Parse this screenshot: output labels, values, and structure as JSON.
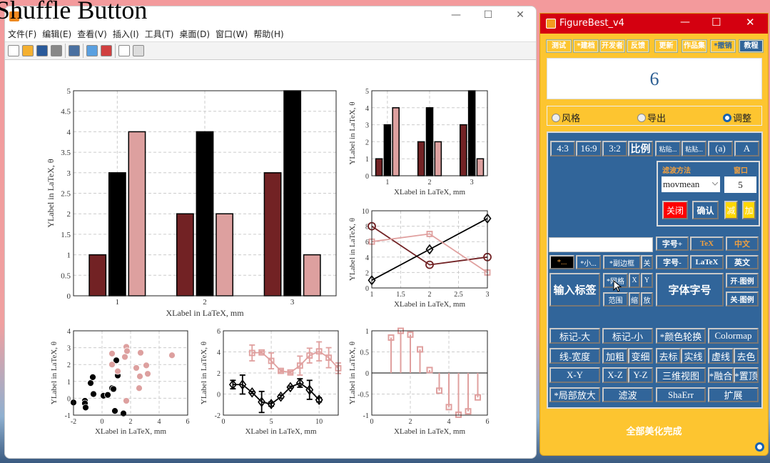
{
  "figure_window": {
    "overlay_label": "Shuffle Button",
    "menu": [
      "文件(F)",
      "编辑(E)",
      "查看(V)",
      "插入(I)",
      "工具(T)",
      "桌面(D)",
      "窗口(W)",
      "帮助(H)"
    ],
    "toolbar_icons": [
      "new-file-icon",
      "open-folder-icon",
      "save-icon",
      "print-icon",
      "link-icon",
      "colorbar-icon",
      "legend-icon",
      "pointer-icon",
      "property-editor-icon"
    ],
    "controls": {
      "minimize": "—",
      "maximize": "☐",
      "close": "✕"
    }
  },
  "chart_data": [
    {
      "id": "main-bar",
      "type": "bar",
      "categories": [
        1,
        2,
        3
      ],
      "xlim": [
        0.5,
        3.5
      ],
      "ylim": [
        0,
        5
      ],
      "yticks": [
        0,
        0.5,
        1,
        1.5,
        2,
        2.5,
        3,
        3.5,
        4,
        4.5,
        5
      ],
      "xticks": [
        1,
        2,
        3
      ],
      "series": [
        {
          "color": "#722224",
          "values": [
            1,
            2,
            3
          ]
        },
        {
          "color": "#000000",
          "values": [
            3,
            4,
            5
          ]
        },
        {
          "color": "#dda09f",
          "values": [
            4,
            2,
            1
          ]
        }
      ],
      "xlabel": "XLabel in LaTeX, mm",
      "ylabel": "YLabel in LaTeX, θ",
      "grid": true
    },
    {
      "id": "small-bar",
      "type": "bar",
      "categories": [
        1,
        2,
        3
      ],
      "xlim": [
        0.63,
        3.37
      ],
      "ylim": [
        0,
        5
      ],
      "yticks": [
        0,
        1,
        2,
        3,
        4,
        5
      ],
      "xticks": [
        1,
        2,
        3
      ],
      "series": [
        {
          "color": "#722224",
          "values": [
            1,
            2,
            3
          ]
        },
        {
          "color": "#000000",
          "values": [
            3,
            4,
            5
          ]
        },
        {
          "color": "#dda09f",
          "values": [
            4,
            2,
            1
          ]
        }
      ],
      "xlabel": "XLabel in LaTeX, mm",
      "ylabel": "YLabel in LaTeX, θ",
      "grid": true
    },
    {
      "id": "line",
      "type": "line",
      "xlim": [
        1,
        3
      ],
      "ylim": [
        0,
        10
      ],
      "xticks": [
        1,
        1.5,
        2,
        2.5,
        3
      ],
      "yticks": [
        0,
        2,
        4,
        6,
        8,
        10
      ],
      "series": [
        {
          "color": "#722224",
          "marker": "circle",
          "x": [
            1,
            2,
            3
          ],
          "y": [
            8,
            3,
            4
          ]
        },
        {
          "color": "#000000",
          "marker": "diamond",
          "x": [
            1,
            2,
            3
          ],
          "y": [
            1,
            5,
            9
          ]
        },
        {
          "color": "#e0a09f",
          "marker": "square",
          "x": [
            1,
            2,
            3
          ],
          "y": [
            6,
            7,
            2
          ]
        }
      ],
      "xlabel": "XLabel in LaTeX, mm",
      "ylabel": "YLabel in LaTeX, θ",
      "grid": true
    },
    {
      "id": "scatter",
      "type": "scatter",
      "xlim": [
        -2,
        6
      ],
      "ylim": [
        -1,
        4
      ],
      "xticks": [
        -2,
        0,
        2,
        4,
        6
      ],
      "yticks": [
        -1,
        0,
        1,
        2,
        3,
        4
      ],
      "series": [
        {
          "color": "#000000",
          "x": [
            -2,
            -1.2,
            -1.2,
            -1.15,
            -0.8,
            -0.65,
            -0.6,
            0.1,
            0.4,
            0.7,
            0.8,
            1.0,
            1.1,
            0.9,
            1.5
          ],
          "y": [
            -0.25,
            -0.15,
            -0.3,
            -0.55,
            0.9,
            1.25,
            0.25,
            0.15,
            0.2,
            0.6,
            0.55,
            2.25,
            1.35,
            -0.75,
            -0.9
          ]
        },
        {
          "color": "#dda09f",
          "x": [
            0.7,
            0.7,
            1.1,
            1.7,
            1.75,
            1.6,
            1.7,
            2.4,
            2.7,
            2.65,
            2.6,
            3.1,
            3.2,
            4.9
          ],
          "y": [
            2.65,
            2.0,
            1.6,
            3.05,
            2.8,
            2.45,
            -0.15,
            1.8,
            2.7,
            1.3,
            0.6,
            1.95,
            1.45,
            2.55
          ]
        }
      ],
      "xlabel": "XLabel in LaTeX, mm",
      "ylabel": "YLabel in LaTeX, θ",
      "grid": true
    },
    {
      "id": "errorbar",
      "type": "line",
      "xlim": [
        0,
        12
      ],
      "ylim": [
        -2,
        6
      ],
      "xticks": [
        0,
        5,
        10
      ],
      "yticks": [
        -2,
        0,
        2,
        4,
        6
      ],
      "series": [
        {
          "color": "#000000",
          "marker": "diamond",
          "x": [
            1,
            2,
            3,
            4,
            5,
            6,
            7,
            8,
            9,
            10
          ],
          "y": [
            0.9,
            0.9,
            0.15,
            -0.75,
            -0.95,
            -0.25,
            0.65,
            1.05,
            0.4,
            -0.55
          ],
          "err": [
            0.4,
            0.9,
            0.1,
            1.0,
            0.2,
            0.15,
            0.1,
            0.4,
            0.9,
            0.2
          ]
        },
        {
          "color": "#e0a09f",
          "marker": "square",
          "x": [
            3,
            4,
            5,
            6,
            7,
            8,
            9,
            10,
            11,
            12
          ],
          "y": [
            3.9,
            3.95,
            3.15,
            2.2,
            2.05,
            2.7,
            3.65,
            4.05,
            3.45,
            2.45
          ],
          "err": [
            0.75,
            0.1,
            0.75,
            0.1,
            0.1,
            0.9,
            0.7,
            0.9,
            0.95,
            0.5
          ]
        }
      ],
      "xlabel": "XLabel in LaTeX, mm",
      "ylabel": "YLabel in LaTeX, θ",
      "grid": true
    },
    {
      "id": "stem",
      "type": "stem",
      "xlim": [
        0,
        6
      ],
      "ylim": [
        -1,
        1
      ],
      "xticks": [
        0,
        2,
        4,
        6
      ],
      "yticks": [
        -1,
        -0.5,
        0,
        0.5,
        1
      ],
      "series": [
        {
          "color": "#e0a09f",
          "marker": "square",
          "x": [
            1,
            1.5,
            2,
            2.5,
            3,
            3.5,
            4,
            4.5,
            5,
            5.5
          ],
          "y": [
            0.84,
            1.0,
            0.91,
            0.56,
            0.07,
            -0.42,
            -0.81,
            -0.99,
            -0.91,
            -0.58
          ]
        }
      ],
      "xlabel": "XLabel in LaTeX, mm",
      "ylabel": "YLabel in LaTeX, θ",
      "grid": true
    }
  ],
  "figurebest": {
    "title": "FigureBest_v4",
    "top_buttons": [
      "测试",
      "*建档",
      "开发者",
      "反馈",
      "更新",
      "作品集",
      "*撤销",
      "教程"
    ],
    "display_value": "6",
    "radios": [
      {
        "label": "风格",
        "checked": false
      },
      {
        "label": "导出",
        "checked": false
      },
      {
        "label": "调整",
        "checked": true
      }
    ],
    "ratio_buttons": [
      "4:3",
      "16:9",
      "3:2",
      "比例",
      "粘贴...",
      "粘贴...",
      "(a)",
      "A"
    ],
    "filter": {
      "method_label": "滤波方法",
      "window_label": "窗口",
      "method_value": "movmean",
      "window_value": "5",
      "close": "关闭",
      "confirm": "确认",
      "minus": "减",
      "plus": "加"
    },
    "label_input_value": "",
    "font": {
      "size_up": "字号+",
      "tex": "TeX",
      "chinese": "中文",
      "size_down": "字号-",
      "latex": "LaTeX",
      "english": "英文",
      "font_size": "字体字号",
      "legend_on": "开-图例",
      "legend_off": "关-图例"
    },
    "misc": {
      "star_dots": "*...",
      "small": "*小...",
      "sub_box": "*副边框",
      "off": "关",
      "input_label": "输入标签",
      "grid": "*网格",
      "x": "X",
      "y": "Y",
      "range": "范围",
      "shrink": "缩",
      "enlarge": "放"
    },
    "grid_buttons": [
      [
        "标记-大",
        "标记-小",
        "*颜色轮换",
        "Colormap"
      ],
      [
        "线-宽度",
        [
          "加粗",
          "变细"
        ],
        [
          "去标",
          "实线"
        ],
        [
          "虚线",
          "去色"
        ]
      ],
      [
        "X-Y",
        [
          "X-Z",
          "Y-Z"
        ],
        "三维视图",
        [
          "*融合",
          "*置顶"
        ]
      ],
      [
        "*局部放大",
        "滤波",
        "ShaErr",
        "扩展"
      ]
    ],
    "status": "全部美化完成",
    "colors": {
      "title_bar": "#d40010",
      "body": "#fdc530",
      "panel": "#31659a",
      "accent": "#1662b4"
    }
  }
}
